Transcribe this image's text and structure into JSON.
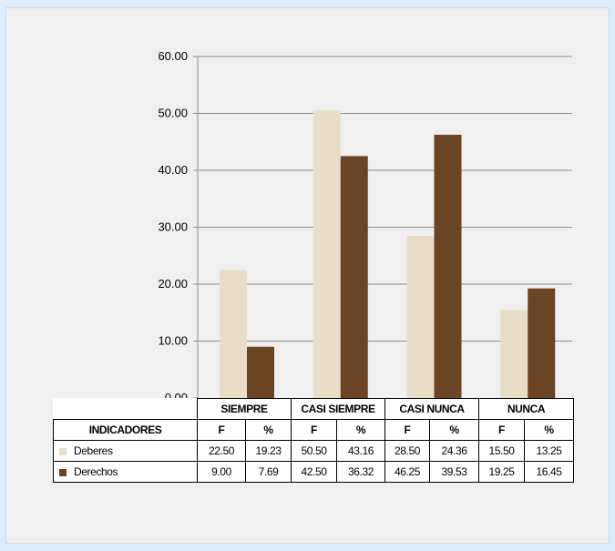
{
  "chart_data": {
    "type": "bar",
    "categories": [
      "SIEMPRE",
      "CASI SIEMPRE",
      "CASI NUNCA",
      "NUNCA"
    ],
    "series": [
      {
        "name": "Deberes",
        "color": "#e8dec8",
        "values": [
          22.5,
          50.5,
          28.5,
          15.5
        ]
      },
      {
        "name": "Derechos",
        "color": "#6b4423",
        "values": [
          9.0,
          42.5,
          46.25,
          19.25
        ]
      }
    ],
    "ylim": [
      0,
      60
    ],
    "yticks": [
      "0.00",
      "10.00",
      "20.00",
      "30.00",
      "40.00",
      "50.00",
      "60.00"
    ],
    "grid": true
  },
  "table": {
    "indicator_label": "INDICADORES",
    "f_label": "F",
    "pct_label": "%",
    "rows": [
      {
        "label": "Deberes",
        "cells": [
          "22.50",
          "19.23",
          "50.50",
          "43.16",
          "28.50",
          "24.36",
          "15.50",
          "13.25"
        ]
      },
      {
        "label": "Derechos",
        "cells": [
          "9.00",
          "7.69",
          "42.50",
          "36.32",
          "46.25",
          "39.53",
          "19.25",
          "16.45"
        ]
      }
    ]
  }
}
